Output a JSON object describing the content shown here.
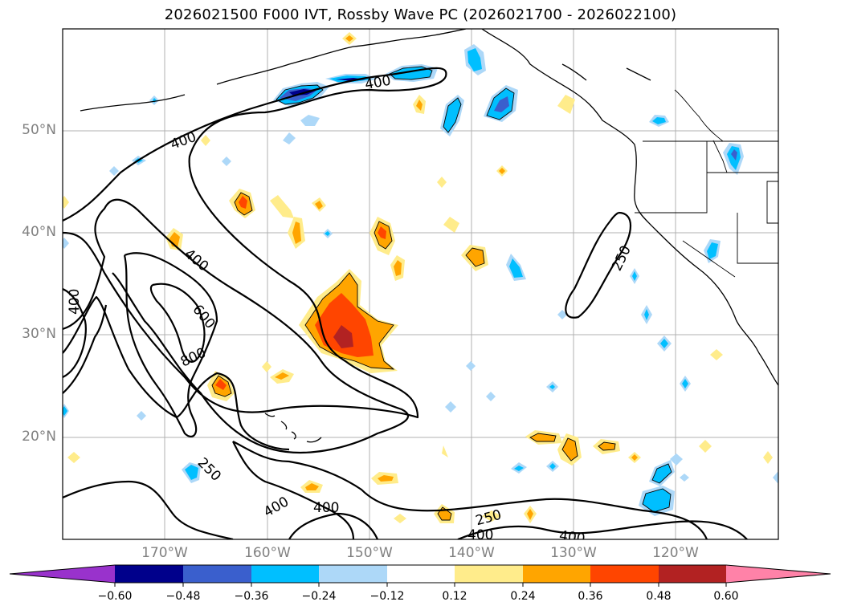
{
  "title": "2026021500 F000 IVT, Rossby Wave PC (2026021700 - 2026022100)",
  "latitude_labels": [
    "50°N",
    "40°N",
    "30°N",
    "20°N"
  ],
  "longitude_labels": [
    "170°W",
    "160°W",
    "150°W",
    "140°W",
    "130°W",
    "120°W"
  ],
  "contour_labels": [
    "400",
    "400",
    "400",
    "400",
    "600",
    "800",
    "250",
    "400",
    "400",
    "250",
    "400",
    "400",
    "250"
  ],
  "colorbar": {
    "ticks": [
      "−0.60",
      "−0.48",
      "−0.36",
      "−0.24",
      "−0.12",
      "0.12",
      "0.24",
      "0.36",
      "0.48",
      "0.60"
    ],
    "colors": [
      "#9932cc",
      "#00008b",
      "#3a5fcd",
      "#00bfff",
      "#add8f8",
      "#ffffff",
      "#ffec8b",
      "#ffa500",
      "#ff4500",
      "#b22222",
      "#ff82a8"
    ]
  },
  "fill_colors": {
    "neg_light": "#add8f8",
    "neg_mid": "#00bfff",
    "neg_dark": "#3a5fcd",
    "neg_darkest": "#00008b",
    "pos_light": "#ffec8b",
    "pos_mid": "#ffa500",
    "pos_dark": "#ff4500",
    "pos_darkest": "#b22222"
  }
}
